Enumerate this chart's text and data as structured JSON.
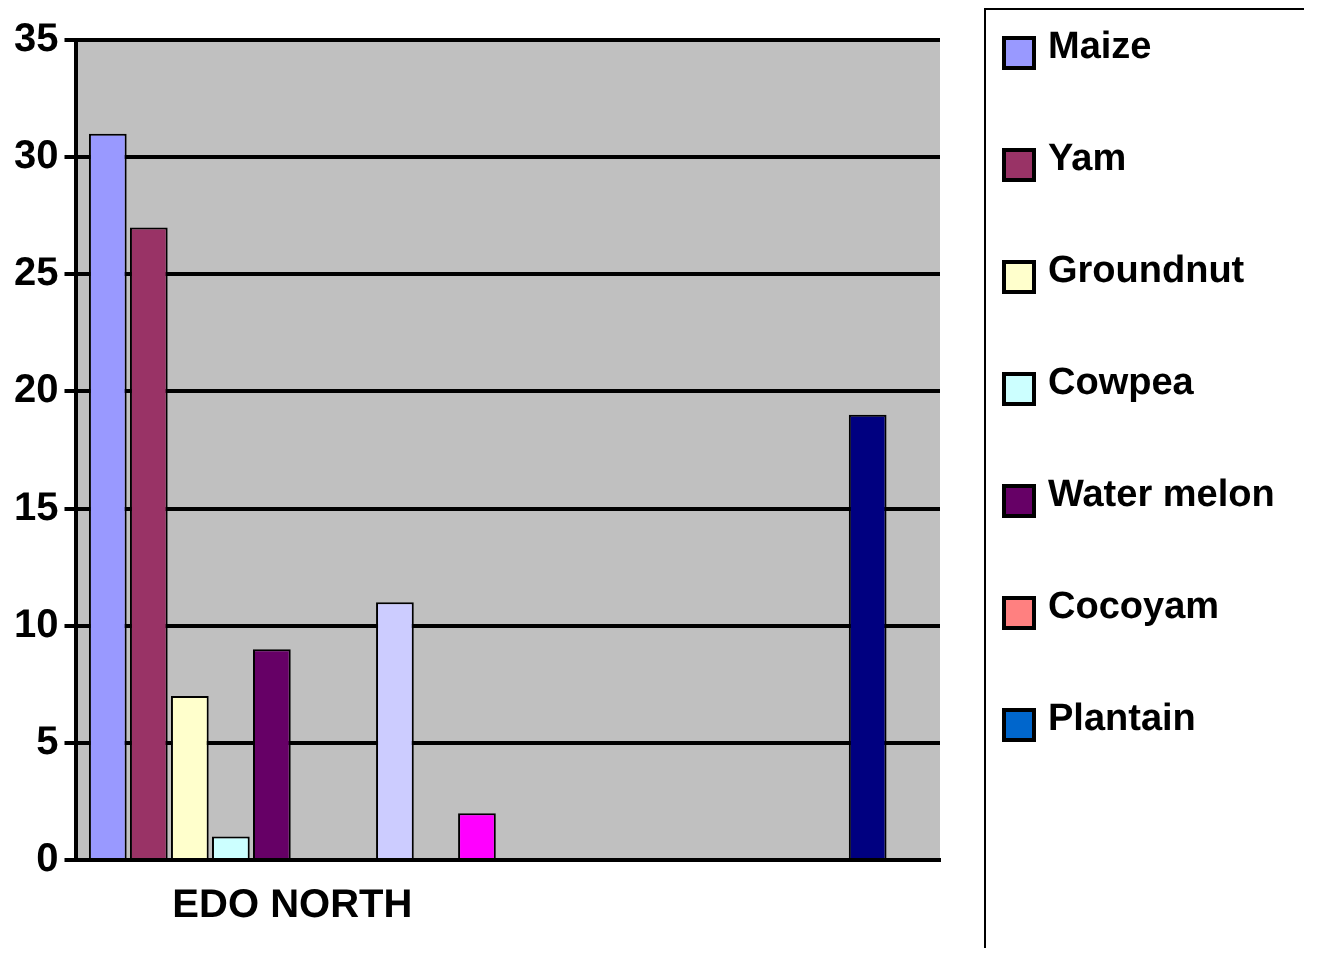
{
  "chart_data": {
    "type": "bar",
    "categories": [
      "EDO NORTH",
      null
    ],
    "series": [
      {
        "name": "Maize",
        "color": "#9999ff",
        "values": [
          31,
          null
        ]
      },
      {
        "name": "Yam",
        "color": "#993366",
        "values": [
          27,
          null
        ]
      },
      {
        "name": "Groundnut",
        "color": "#ffffcc",
        "values": [
          7,
          null
        ]
      },
      {
        "name": "Cowpea",
        "color": "#ccffff",
        "values": [
          1,
          null
        ]
      },
      {
        "name": "Water melon",
        "color": "#660066",
        "values": [
          9,
          null
        ]
      },
      {
        "name": "Cocoyam",
        "color": "#ff8080",
        "values": [
          0,
          null
        ]
      },
      {
        "name": "Plantain",
        "color": "#0066cc",
        "values": [
          0,
          null
        ]
      },
      {
        "color": "#ccccff",
        "values": [
          11,
          null
        ]
      },
      {
        "color": "#000080",
        "values": [
          null,
          19
        ]
      },
      {
        "color": "#ff00ff",
        "values": [
          2,
          null
        ]
      }
    ],
    "ylim": [
      0,
      35
    ],
    "yticks": [
      0,
      5,
      10,
      15,
      20,
      25,
      30,
      35
    ],
    "grid": "y",
    "legend": "right"
  }
}
